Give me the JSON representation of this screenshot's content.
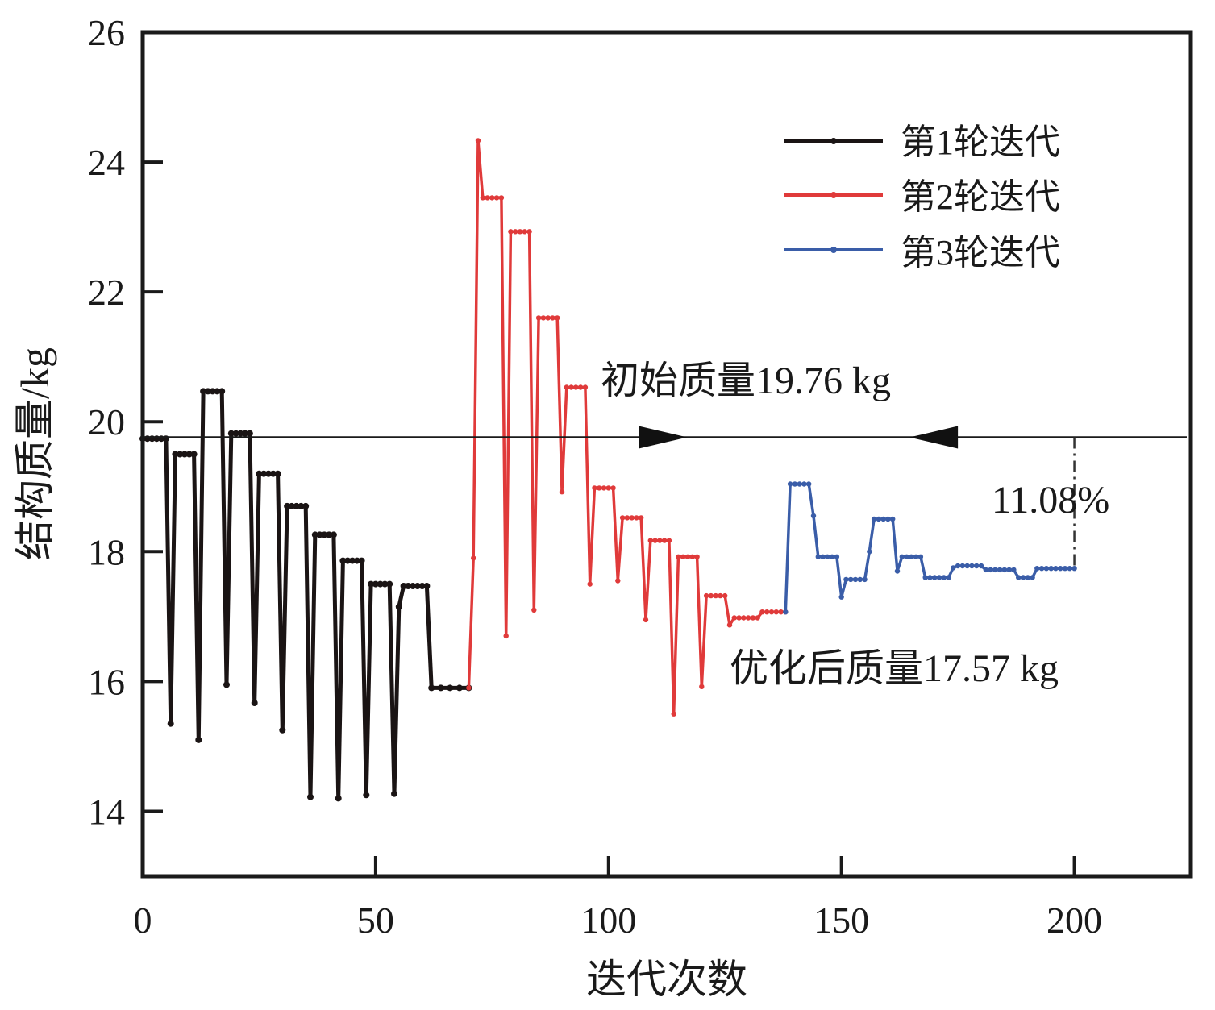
{
  "chart_data": {
    "type": "line",
    "title": "",
    "xlabel": "迭代次数",
    "ylabel": "结构质量/kg",
    "xlim": [
      0,
      225
    ],
    "ylim": [
      13,
      26
    ],
    "x_ticks": [
      0,
      50,
      100,
      150,
      200
    ],
    "x_tick_labels": [
      "0",
      "50",
      "100",
      "150",
      "200"
    ],
    "y_ticks": [
      14,
      16,
      18,
      20,
      22,
      24,
      26
    ],
    "y_tick_labels": [
      "14",
      "16",
      "18",
      "20",
      "22",
      "24",
      "26"
    ],
    "grid": false,
    "legend_position": "top-right",
    "series": [
      {
        "name": "第1轮迭代",
        "color": "#1a1414",
        "points": [
          [
            0,
            19.74
          ],
          [
            1,
            19.74
          ],
          [
            2,
            19.74
          ],
          [
            3,
            19.74
          ],
          [
            4,
            19.74
          ],
          [
            5,
            19.74
          ],
          [
            6,
            15.35
          ],
          [
            7,
            19.5
          ],
          [
            8,
            19.5
          ],
          [
            9,
            19.5
          ],
          [
            10,
            19.5
          ],
          [
            11,
            19.5
          ],
          [
            12,
            15.1
          ],
          [
            13,
            20.47
          ],
          [
            14,
            20.47
          ],
          [
            15,
            20.47
          ],
          [
            16,
            20.47
          ],
          [
            17,
            20.47
          ],
          [
            18,
            15.95
          ],
          [
            19,
            19.82
          ],
          [
            20,
            19.82
          ],
          [
            21,
            19.82
          ],
          [
            22,
            19.82
          ],
          [
            23,
            19.82
          ],
          [
            24,
            15.67
          ],
          [
            25,
            19.2
          ],
          [
            26,
            19.2
          ],
          [
            27,
            19.2
          ],
          [
            28,
            19.2
          ],
          [
            29,
            19.2
          ],
          [
            30,
            15.25
          ],
          [
            31,
            18.7
          ],
          [
            32,
            18.7
          ],
          [
            33,
            18.7
          ],
          [
            34,
            18.7
          ],
          [
            35,
            18.7
          ],
          [
            36,
            14.22
          ],
          [
            37,
            18.26
          ],
          [
            38,
            18.26
          ],
          [
            39,
            18.26
          ],
          [
            40,
            18.26
          ],
          [
            41,
            18.26
          ],
          [
            42,
            14.2
          ],
          [
            43,
            17.86
          ],
          [
            44,
            17.86
          ],
          [
            45,
            17.86
          ],
          [
            46,
            17.86
          ],
          [
            47,
            17.86
          ],
          [
            48,
            14.25
          ],
          [
            49,
            17.5
          ],
          [
            50,
            17.5
          ],
          [
            51,
            17.5
          ],
          [
            52,
            17.5
          ],
          [
            53,
            17.5
          ],
          [
            54,
            14.27
          ],
          [
            55,
            17.15
          ],
          [
            56,
            17.47
          ],
          [
            57,
            17.47
          ],
          [
            58,
            17.47
          ],
          [
            59,
            17.47
          ],
          [
            60,
            17.47
          ],
          [
            61,
            17.47
          ],
          [
            62,
            15.9
          ],
          [
            64,
            15.9
          ],
          [
            66,
            15.9
          ],
          [
            68,
            15.9
          ],
          [
            70,
            15.9
          ]
        ]
      },
      {
        "name": "第2轮迭代",
        "color": "#e03a3a",
        "points": [
          [
            70,
            15.9
          ],
          [
            71,
            17.9
          ],
          [
            72,
            24.33
          ],
          [
            73,
            23.45
          ],
          [
            74,
            23.45
          ],
          [
            75,
            23.45
          ],
          [
            76,
            23.45
          ],
          [
            77,
            23.45
          ],
          [
            78,
            16.7
          ],
          [
            79,
            22.93
          ],
          [
            80,
            22.93
          ],
          [
            81,
            22.93
          ],
          [
            82,
            22.93
          ],
          [
            83,
            22.93
          ],
          [
            84,
            17.1
          ],
          [
            85,
            21.6
          ],
          [
            86,
            21.6
          ],
          [
            87,
            21.6
          ],
          [
            88,
            21.6
          ],
          [
            89,
            21.6
          ],
          [
            90,
            18.92
          ],
          [
            91,
            20.53
          ],
          [
            92,
            20.53
          ],
          [
            93,
            20.53
          ],
          [
            94,
            20.53
          ],
          [
            95,
            20.53
          ],
          [
            96,
            17.5
          ],
          [
            97,
            18.98
          ],
          [
            98,
            18.98
          ],
          [
            99,
            18.98
          ],
          [
            100,
            18.98
          ],
          [
            101,
            18.98
          ],
          [
            102,
            17.55
          ],
          [
            103,
            18.52
          ],
          [
            104,
            18.52
          ],
          [
            105,
            18.52
          ],
          [
            106,
            18.52
          ],
          [
            107,
            18.52
          ],
          [
            108,
            16.95
          ],
          [
            109,
            18.17
          ],
          [
            110,
            18.17
          ],
          [
            111,
            18.17
          ],
          [
            112,
            18.17
          ],
          [
            113,
            18.17
          ],
          [
            114,
            15.5
          ],
          [
            115,
            17.92
          ],
          [
            116,
            17.92
          ],
          [
            117,
            17.92
          ],
          [
            118,
            17.92
          ],
          [
            119,
            17.92
          ],
          [
            120,
            15.92
          ],
          [
            121,
            17.32
          ],
          [
            122,
            17.32
          ],
          [
            123,
            17.32
          ],
          [
            124,
            17.32
          ],
          [
            125,
            17.32
          ],
          [
            126,
            16.87
          ],
          [
            127,
            16.98
          ],
          [
            128,
            16.98
          ],
          [
            129,
            16.98
          ],
          [
            130,
            16.98
          ],
          [
            131,
            16.98
          ],
          [
            132,
            16.98
          ],
          [
            133,
            17.07
          ],
          [
            134,
            17.07
          ],
          [
            135,
            17.07
          ],
          [
            136,
            17.07
          ],
          [
            137,
            17.07
          ],
          [
            138,
            17.07
          ]
        ]
      },
      {
        "name": "第3轮迭代",
        "color": "#3a5da8",
        "points": [
          [
            138,
            17.07
          ],
          [
            139,
            19.04
          ],
          [
            140,
            19.04
          ],
          [
            141,
            19.04
          ],
          [
            142,
            19.04
          ],
          [
            143,
            19.04
          ],
          [
            144,
            18.55
          ],
          [
            145,
            17.92
          ],
          [
            146,
            17.92
          ],
          [
            147,
            17.92
          ],
          [
            148,
            17.92
          ],
          [
            149,
            17.92
          ],
          [
            150,
            17.3
          ],
          [
            151,
            17.57
          ],
          [
            152,
            17.57
          ],
          [
            153,
            17.57
          ],
          [
            154,
            17.57
          ],
          [
            155,
            17.57
          ],
          [
            156,
            18.0
          ],
          [
            157,
            18.5
          ],
          [
            158,
            18.5
          ],
          [
            159,
            18.5
          ],
          [
            160,
            18.5
          ],
          [
            161,
            18.5
          ],
          [
            162,
            17.7
          ],
          [
            163,
            17.92
          ],
          [
            164,
            17.92
          ],
          [
            165,
            17.92
          ],
          [
            166,
            17.92
          ],
          [
            167,
            17.92
          ],
          [
            168,
            17.6
          ],
          [
            169,
            17.6
          ],
          [
            170,
            17.6
          ],
          [
            171,
            17.6
          ],
          [
            172,
            17.6
          ],
          [
            173,
            17.6
          ],
          [
            174,
            17.75
          ],
          [
            175,
            17.78
          ],
          [
            176,
            17.78
          ],
          [
            177,
            17.78
          ],
          [
            178,
            17.78
          ],
          [
            179,
            17.78
          ],
          [
            180,
            17.78
          ],
          [
            181,
            17.72
          ],
          [
            182,
            17.72
          ],
          [
            183,
            17.72
          ],
          [
            184,
            17.72
          ],
          [
            185,
            17.72
          ],
          [
            186,
            17.72
          ],
          [
            187,
            17.72
          ],
          [
            188,
            17.6
          ],
          [
            189,
            17.6
          ],
          [
            190,
            17.6
          ],
          [
            191,
            17.6
          ],
          [
            192,
            17.74
          ],
          [
            193,
            17.74
          ],
          [
            194,
            17.74
          ],
          [
            195,
            17.74
          ],
          [
            196,
            17.74
          ],
          [
            197,
            17.74
          ],
          [
            198,
            17.74
          ],
          [
            199,
            17.74
          ],
          [
            200,
            17.74
          ]
        ]
      }
    ],
    "reference_line": {
      "y": 19.76,
      "color": "#1a1a1a"
    },
    "annotations": {
      "initial_mass": "初始质量19.76 kg",
      "optimized_mass": "优化后质量17.57 kg",
      "reduction": "11.08%"
    }
  }
}
